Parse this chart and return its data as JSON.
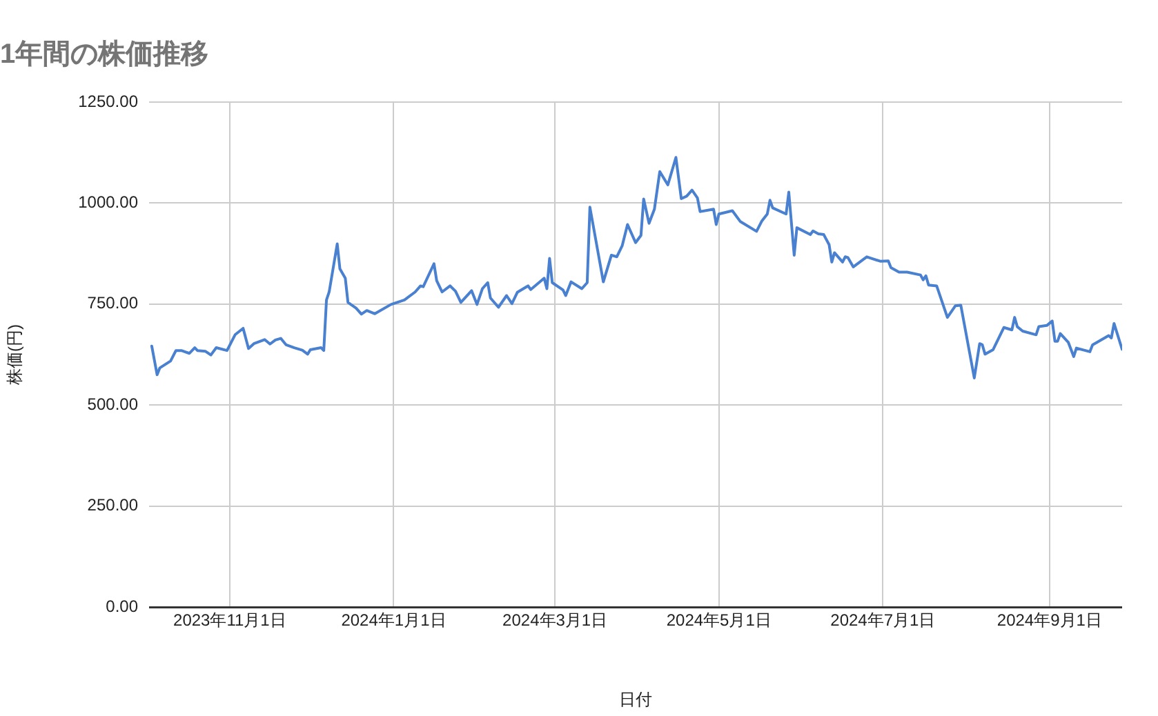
{
  "chart_data": {
    "type": "line",
    "title": "1年間の株価推移",
    "xlabel": "日付",
    "ylabel": "株価(円)",
    "x": [
      "2023-10-03",
      "2023-10-05",
      "2023-10-06",
      "2023-10-10",
      "2023-10-12",
      "2023-10-14",
      "2023-10-17",
      "2023-10-19",
      "2023-10-20",
      "2023-10-23",
      "2023-10-25",
      "2023-10-27",
      "2023-10-31",
      "2023-11-03",
      "2023-11-06",
      "2023-11-08",
      "2023-11-10",
      "2023-11-14",
      "2023-11-16",
      "2023-11-18",
      "2023-11-20",
      "2023-11-22",
      "2023-11-25",
      "2023-11-28",
      "2023-11-30",
      "2023-12-01",
      "2023-12-05",
      "2023-12-06",
      "2023-12-07",
      "2023-12-08",
      "2023-12-11",
      "2023-12-12",
      "2023-12-14",
      "2023-12-15",
      "2023-12-18",
      "2023-12-20",
      "2023-12-22",
      "2023-12-25",
      "2023-12-31",
      "2024-01-05",
      "2024-01-09",
      "2024-01-11",
      "2024-01-12",
      "2024-01-16",
      "2024-01-17",
      "2024-01-19",
      "2024-01-22",
      "2024-01-24",
      "2024-01-26",
      "2024-01-30",
      "2024-02-01",
      "2024-02-03",
      "2024-02-05",
      "2024-02-06",
      "2024-02-09",
      "2024-02-12",
      "2024-02-14",
      "2024-02-16",
      "2024-02-20",
      "2024-02-21",
      "2024-02-26",
      "2024-02-27",
      "2024-02-28",
      "2024-02-29",
      "2024-03-04",
      "2024-03-05",
      "2024-03-07",
      "2024-03-11",
      "2024-03-13",
      "2024-03-14",
      "2024-03-19",
      "2024-03-22",
      "2024-03-24",
      "2024-03-26",
      "2024-03-28",
      "2024-03-31",
      "2024-04-02",
      "2024-04-03",
      "2024-04-05",
      "2024-04-07",
      "2024-04-09",
      "2024-04-12",
      "2024-04-15",
      "2024-04-17",
      "2024-04-19",
      "2024-04-21",
      "2024-04-23",
      "2024-04-24",
      "2024-04-29",
      "2024-04-30",
      "2024-05-01",
      "2024-05-06",
      "2024-05-09",
      "2024-05-15",
      "2024-05-17",
      "2024-05-19",
      "2024-05-20",
      "2024-05-21",
      "2024-05-26",
      "2024-05-27",
      "2024-05-29",
      "2024-05-30",
      "2024-06-04",
      "2024-06-05",
      "2024-06-07",
      "2024-06-09",
      "2024-06-11",
      "2024-06-12",
      "2024-06-13",
      "2024-06-16",
      "2024-06-17",
      "2024-06-18",
      "2024-06-20",
      "2024-06-25",
      "2024-06-30",
      "2024-07-03",
      "2024-07-04",
      "2024-07-07",
      "2024-07-10",
      "2024-07-15",
      "2024-07-16",
      "2024-07-17",
      "2024-07-18",
      "2024-07-21",
      "2024-07-25",
      "2024-07-28",
      "2024-07-30",
      "2024-08-04",
      "2024-08-06",
      "2024-08-07",
      "2024-08-08",
      "2024-08-11",
      "2024-08-15",
      "2024-08-18",
      "2024-08-19",
      "2024-08-20",
      "2024-08-22",
      "2024-08-27",
      "2024-08-28",
      "2024-08-31",
      "2024-09-02",
      "2024-09-03",
      "2024-09-04",
      "2024-09-05",
      "2024-09-08",
      "2024-09-10",
      "2024-09-11",
      "2024-09-16",
      "2024-09-17",
      "2024-09-23",
      "2024-09-24",
      "2024-09-25",
      "2024-09-28"
    ],
    "series": [
      {
        "color": "#4a80d0",
        "values": [
          646,
          575,
          592,
          609,
          635,
          635,
          628,
          642,
          635,
          633,
          624,
          642,
          635,
          674,
          690,
          640,
          652,
          662,
          651,
          661,
          665,
          649,
          642,
          636,
          626,
          637,
          642,
          635,
          760,
          780,
          899,
          837,
          814,
          754,
          740,
          725,
          734,
          726,
          749,
          760,
          780,
          795,
          793,
          850,
          808,
          780,
          795,
          782,
          754,
          783,
          749,
          788,
          803,
          765,
          742,
          771,
          751,
          779,
          795,
          786,
          814,
          788,
          863,
          803,
          785,
          771,
          805,
          788,
          803,
          990,
          805,
          871,
          867,
          894,
          947,
          902,
          920,
          1010,
          950,
          985,
          1078,
          1045,
          1113,
          1011,
          1017,
          1032,
          1013,
          979,
          985,
          947,
          973,
          981,
          954,
          930,
          956,
          973,
          1007,
          988,
          973,
          1027,
          871,
          939,
          922,
          931,
          924,
          922,
          897,
          854,
          877,
          854,
          867,
          865,
          842,
          867,
          856,
          857,
          840,
          829,
          829,
          822,
          810,
          820,
          797,
          795,
          717,
          746,
          747,
          567,
          652,
          649,
          626,
          637,
          692,
          686,
          717,
          694,
          683,
          674,
          694,
          697,
          708,
          658,
          658,
          677,
          655,
          620,
          641,
          632,
          649,
          672,
          666,
          702,
          638
        ]
      }
    ],
    "xlim": [
      "2023-10-02",
      "2024-09-28"
    ],
    "xticks": [
      {
        "value": "2023-11-01",
        "label": "2023年11月1日"
      },
      {
        "value": "2024-01-01",
        "label": "2024年1月1日"
      },
      {
        "value": "2024-03-01",
        "label": "2024年3月1日"
      },
      {
        "value": "2024-05-01",
        "label": "2024年5月1日"
      },
      {
        "value": "2024-07-01",
        "label": "2024年7月1日"
      },
      {
        "value": "2024-09-01",
        "label": "2024年9月1日"
      }
    ],
    "ylim": [
      0,
      1250
    ],
    "yticks": [
      {
        "value": 0,
        "label": "0.00"
      },
      {
        "value": 250,
        "label": "250.00"
      },
      {
        "value": 500,
        "label": "500.00"
      },
      {
        "value": 750,
        "label": "750.00"
      },
      {
        "value": 1000,
        "label": "1000.00"
      },
      {
        "value": 1250,
        "label": "1250.00"
      }
    ],
    "grid": true,
    "legend": false,
    "marker": "none",
    "line_style": "solid"
  }
}
